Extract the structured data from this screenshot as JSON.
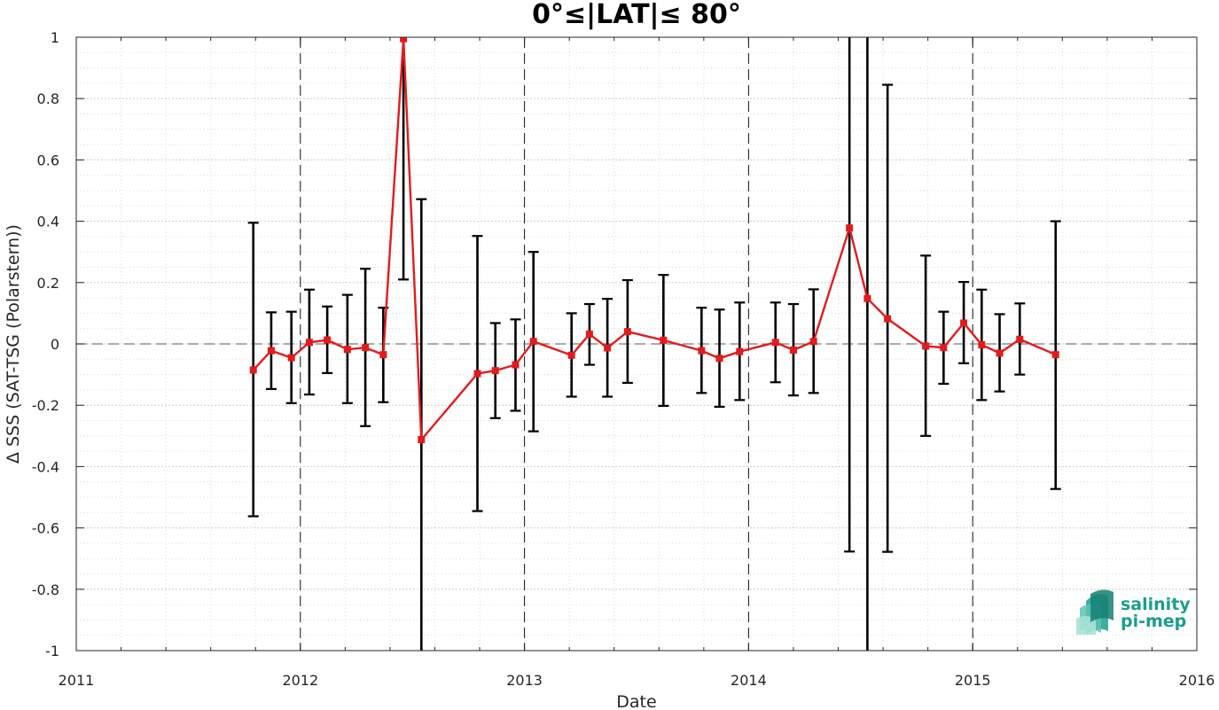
{
  "chart_data": {
    "type": "line",
    "title": "0°≤|LAT|≤ 80°",
    "xlabel": "Date",
    "ylabel": "Δ SSS (SAT-TSG (Polarstern))",
    "xlim": [
      2011,
      2016
    ],
    "ylim": [
      -1,
      1
    ],
    "x_ticks": [
      "2011",
      "2012",
      "2013",
      "2014",
      "2015",
      "2016"
    ],
    "y_ticks": [
      "1",
      "0.8",
      "0.6",
      "0.4",
      "0.2",
      "0",
      "-0.2",
      "-0.4",
      "-0.6",
      "-0.8",
      "-1"
    ],
    "year_separators": [
      2012,
      2013,
      2014,
      2015
    ],
    "zero_line": 0,
    "grid": true,
    "series": [
      {
        "color": "#e41a1c",
        "marker": "square",
        "points": [
          {
            "x": 2011.79,
            "y": -0.085,
            "lo": -0.562,
            "hi": 0.395
          },
          {
            "x": 2011.87,
            "y": -0.022,
            "lo": -0.147,
            "hi": 0.103
          },
          {
            "x": 2011.96,
            "y": -0.045,
            "lo": -0.193,
            "hi": 0.105
          },
          {
            "x": 2012.04,
            "y": 0.005,
            "lo": -0.165,
            "hi": 0.177
          },
          {
            "x": 2012.12,
            "y": 0.013,
            "lo": -0.095,
            "hi": 0.122
          },
          {
            "x": 2012.21,
            "y": -0.018,
            "lo": -0.193,
            "hi": 0.16
          },
          {
            "x": 2012.29,
            "y": -0.012,
            "lo": -0.268,
            "hi": 0.245
          },
          {
            "x": 2012.37,
            "y": -0.035,
            "lo": -0.19,
            "hi": 0.118
          },
          {
            "x": 2012.46,
            "y": 0.995,
            "lo": 0.21,
            "hi": 1.78
          },
          {
            "x": 2012.54,
            "y": -0.312,
            "lo": -1.1,
            "hi": 0.472
          },
          {
            "x": 2012.79,
            "y": -0.097,
            "lo": -0.545,
            "hi": 0.352
          },
          {
            "x": 2012.87,
            "y": -0.087,
            "lo": -0.242,
            "hi": 0.068
          },
          {
            "x": 2012.96,
            "y": -0.068,
            "lo": -0.218,
            "hi": 0.08
          },
          {
            "x": 2013.04,
            "y": 0.008,
            "lo": -0.285,
            "hi": 0.3
          },
          {
            "x": 2013.21,
            "y": -0.037,
            "lo": -0.172,
            "hi": 0.1
          },
          {
            "x": 2013.29,
            "y": 0.032,
            "lo": -0.068,
            "hi": 0.13
          },
          {
            "x": 2013.37,
            "y": -0.013,
            "lo": -0.172,
            "hi": 0.147
          },
          {
            "x": 2013.46,
            "y": 0.04,
            "lo": -0.127,
            "hi": 0.208
          },
          {
            "x": 2013.62,
            "y": 0.012,
            "lo": -0.202,
            "hi": 0.225
          },
          {
            "x": 2013.79,
            "y": -0.022,
            "lo": -0.16,
            "hi": 0.118
          },
          {
            "x": 2013.87,
            "y": -0.047,
            "lo": -0.205,
            "hi": 0.112
          },
          {
            "x": 2013.96,
            "y": -0.025,
            "lo": -0.183,
            "hi": 0.135
          },
          {
            "x": 2014.12,
            "y": 0.005,
            "lo": -0.125,
            "hi": 0.135
          },
          {
            "x": 2014.2,
            "y": -0.02,
            "lo": -0.168,
            "hi": 0.13
          },
          {
            "x": 2014.29,
            "y": 0.008,
            "lo": -0.16,
            "hi": 0.178
          },
          {
            "x": 2014.45,
            "y": 0.378,
            "lo": -0.677,
            "hi": 1.43
          },
          {
            "x": 2014.53,
            "y": 0.148,
            "lo": -1.12,
            "hi": 1.42
          },
          {
            "x": 2014.62,
            "y": 0.082,
            "lo": -0.678,
            "hi": 0.845
          },
          {
            "x": 2014.79,
            "y": -0.007,
            "lo": -0.3,
            "hi": 0.288
          },
          {
            "x": 2014.87,
            "y": -0.012,
            "lo": -0.13,
            "hi": 0.105
          },
          {
            "x": 2014.96,
            "y": 0.068,
            "lo": -0.063,
            "hi": 0.202
          },
          {
            "x": 2015.04,
            "y": -0.003,
            "lo": -0.183,
            "hi": 0.177
          },
          {
            "x": 2015.12,
            "y": -0.03,
            "lo": -0.155,
            "hi": 0.097
          },
          {
            "x": 2015.21,
            "y": 0.015,
            "lo": -0.1,
            "hi": 0.132
          },
          {
            "x": 2015.37,
            "y": -0.035,
            "lo": -0.473,
            "hi": 0.4
          }
        ]
      }
    ]
  },
  "logo": {
    "line1": "salinity",
    "line2": "pi-mep",
    "color": "#1a9e8f"
  }
}
